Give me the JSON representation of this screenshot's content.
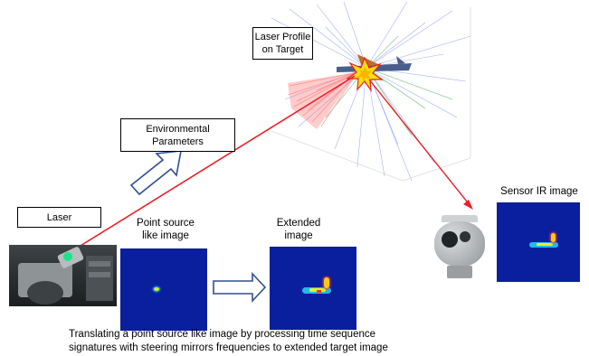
{
  "labels": {
    "laser_profile": "Laser Profile on Target",
    "environmental": "Environmental Parameters",
    "laser": "Laser",
    "point_source": "Point source like image",
    "extended": "Extended image",
    "sensor_ir": "Sensor IR image",
    "caption_line1": "Translating a point source like image by processing time sequence",
    "caption_line2": "signatures with steering mirrors frequencies to extended target image"
  },
  "colors": {
    "beam": "#e8202a",
    "ir_background": "#0a1f9e",
    "arrow_outline": "#2f4f8f"
  }
}
